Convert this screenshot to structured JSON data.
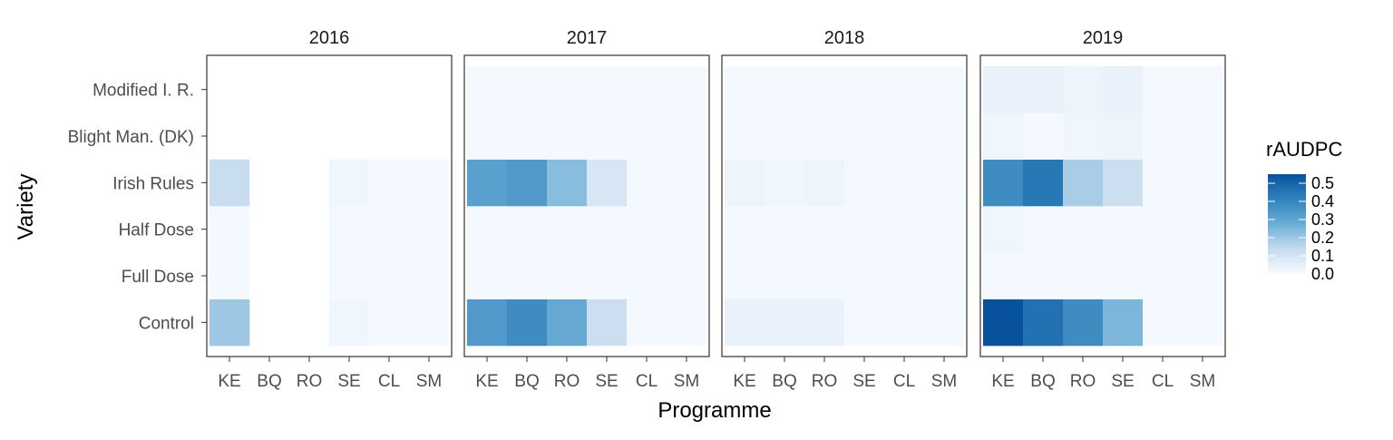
{
  "chart_data": {
    "type": "heatmap",
    "title": "",
    "xlabel": "Programme",
    "ylabel": "Variety",
    "x_categories": [
      "KE",
      "BQ",
      "RO",
      "SE",
      "CL",
      "SM"
    ],
    "y_categories": [
      "Control",
      "Full Dose",
      "Half Dose",
      "Irish Rules",
      "Blight Man. (DK)",
      "Modified I. R."
    ],
    "legend": {
      "title": "rAUDPC",
      "ticks": [
        "0.0",
        "0.1",
        "0.2",
        "0.3",
        "0.4",
        "0.5"
      ],
      "range": [
        0,
        0.55
      ],
      "placement": "right",
      "color_low": "#f7fbff",
      "color_high": "#08519c"
    },
    "facets": [
      {
        "label": "2016",
        "values": [
          [
            0.2,
            null,
            null,
            0.02,
            0.01,
            0.01
          ],
          [
            0.01,
            null,
            null,
            0.01,
            0.01,
            0.01
          ],
          [
            0.01,
            null,
            null,
            0.01,
            0.01,
            0.01
          ],
          [
            0.13,
            null,
            null,
            0.02,
            0.01,
            0.01
          ],
          [
            null,
            null,
            null,
            null,
            null,
            null
          ],
          [
            null,
            null,
            null,
            null,
            null,
            null
          ]
        ]
      },
      {
        "label": "2017",
        "values": [
          [
            0.34,
            0.38,
            0.29,
            0.12,
            0.01,
            0.01
          ],
          [
            0.01,
            0.01,
            0.01,
            0.01,
            0.01,
            0.01
          ],
          [
            0.01,
            0.01,
            0.01,
            0.01,
            0.01,
            0.01
          ],
          [
            0.32,
            0.34,
            0.23,
            0.09,
            0.01,
            0.01
          ],
          [
            0.01,
            0.01,
            0.01,
            0.01,
            0.01,
            0.01
          ],
          [
            0.01,
            0.01,
            0.01,
            0.01,
            0.01,
            0.01
          ]
        ]
      },
      {
        "label": "2018",
        "values": [
          [
            0.04,
            0.04,
            0.04,
            0.01,
            0.01,
            0.01
          ],
          [
            0.01,
            0.01,
            0.01,
            0.01,
            0.01,
            0.01
          ],
          [
            0.01,
            0.01,
            0.01,
            0.01,
            0.01,
            0.01
          ],
          [
            0.03,
            0.02,
            0.03,
            0.01,
            0.01,
            0.01
          ],
          [
            0.01,
            0.01,
            0.01,
            0.01,
            0.01,
            0.01
          ],
          [
            0.01,
            0.01,
            0.01,
            0.01,
            0.01,
            0.01
          ]
        ]
      },
      {
        "label": "2019",
        "values": [
          [
            0.55,
            0.46,
            0.38,
            0.25,
            0.01,
            0.01
          ],
          [
            0.01,
            0.01,
            0.01,
            0.01,
            0.01,
            0.01
          ],
          [
            0.02,
            0.01,
            0.01,
            0.01,
            0.01,
            0.01
          ],
          [
            0.38,
            0.44,
            0.18,
            0.12,
            0.01,
            0.01
          ],
          [
            0.02,
            0.01,
            0.02,
            0.03,
            0.01,
            0.01
          ],
          [
            0.04,
            0.04,
            0.03,
            0.04,
            0.01,
            0.01
          ]
        ]
      }
    ]
  }
}
